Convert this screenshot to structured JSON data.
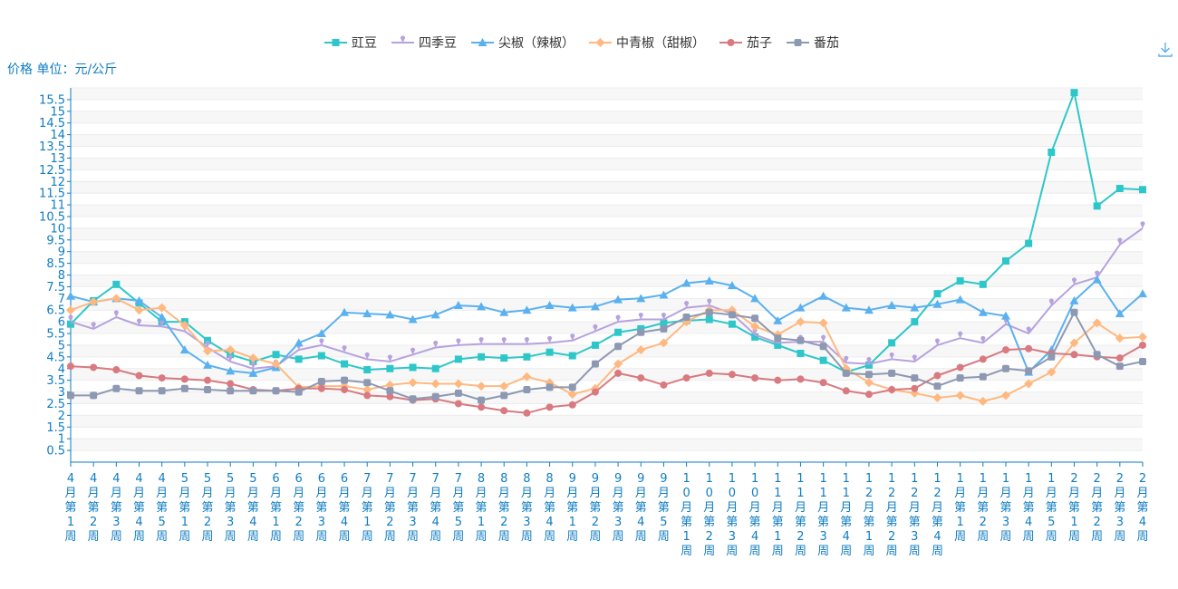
{
  "toolbar": {
    "download_icon": "download-icon"
  },
  "chart_data": {
    "type": "line",
    "ylabel": "价格 单位：元/公斤",
    "ylim": [
      0,
      16
    ],
    "yticks": [
      0.5,
      1,
      1.5,
      2,
      2.5,
      3,
      3.5,
      4,
      4.5,
      5,
      5.5,
      6,
      6.5,
      7,
      7.5,
      8,
      8.5,
      9,
      9.5,
      10,
      10.5,
      11,
      11.5,
      12,
      12.5,
      13,
      13.5,
      14,
      14.5,
      15,
      15.5
    ],
    "legend_position": "top-center",
    "grid": true,
    "categories": [
      "4月第1周",
      "4月第2周",
      "4月第3周",
      "4月第4周",
      "4月第5周",
      "5月第1周",
      "5月第2周",
      "5月第3周",
      "5月第4周",
      "6月第1周",
      "6月第2周",
      "6月第3周",
      "6月第4周",
      "7月第1周",
      "7月第2周",
      "7月第3周",
      "7月第4周",
      "7月第5周",
      "8月第1周",
      "8月第2周",
      "8月第3周",
      "8月第4周",
      "9月第1周",
      "9月第2周",
      "9月第3周",
      "9月第4周",
      "9月第5周",
      "10月第1周",
      "10月第2周",
      "10月第3周",
      "10月第4周",
      "11月第1周",
      "11月第2周",
      "11月第3周",
      "11月第4周",
      "12月第1周",
      "12月第2周",
      "12月第3周",
      "12月第4周",
      "1月第1周",
      "1月第2周",
      "1月第3周",
      "1月第4周",
      "1月第5周",
      "2月第1周",
      "2月第2周",
      "2月第3周",
      "2月第4周"
    ],
    "series": [
      {
        "name": "豇豆",
        "color": "#2ec7c9",
        "symbol": "rect",
        "values": [
          5.9,
          6.9,
          7.6,
          6.8,
          6.0,
          6.0,
          5.2,
          4.6,
          4.3,
          4.6,
          4.4,
          4.55,
          4.2,
          3.95,
          4.0,
          4.05,
          4.0,
          4.4,
          4.5,
          4.45,
          4.5,
          4.7,
          4.55,
          5.0,
          5.55,
          5.7,
          5.95,
          6.05,
          6.1,
          5.9,
          5.35,
          5.0,
          4.65,
          4.35,
          3.85,
          4.15,
          5.1,
          6.0,
          7.2,
          7.75,
          7.6,
          8.6,
          9.35,
          13.25,
          15.8,
          10.95,
          11.7,
          11.65
        ]
      },
      {
        "name": "四季豆",
        "color": "#b6a2de",
        "symbol": "pin",
        "values": [
          6.0,
          5.7,
          6.2,
          5.85,
          5.8,
          5.6,
          4.9,
          4.3,
          4.0,
          4.1,
          4.8,
          5.0,
          4.7,
          4.4,
          4.3,
          4.6,
          4.9,
          5.0,
          5.05,
          5.05,
          5.05,
          5.1,
          5.2,
          5.6,
          6.0,
          6.1,
          6.1,
          6.6,
          6.7,
          6.35,
          5.45,
          5.1,
          5.15,
          5.15,
          4.25,
          4.2,
          4.4,
          4.3,
          5.0,
          5.3,
          5.1,
          5.9,
          5.5,
          6.7,
          7.6,
          7.9,
          9.3,
          10.0
        ]
      },
      {
        "name": "尖椒（辣椒）",
        "color": "#5ab1ef",
        "symbol": "triangle",
        "values": [
          7.1,
          6.85,
          7.0,
          6.9,
          6.2,
          4.8,
          4.15,
          3.9,
          3.8,
          4.05,
          5.1,
          5.5,
          6.4,
          6.35,
          6.3,
          6.1,
          6.3,
          6.7,
          6.65,
          6.4,
          6.5,
          6.7,
          6.6,
          6.65,
          6.95,
          7.0,
          7.15,
          7.65,
          7.75,
          7.55,
          7.0,
          6.05,
          6.6,
          7.1,
          6.6,
          6.5,
          6.7,
          6.6,
          6.75,
          6.95,
          6.4,
          6.25,
          3.85,
          4.8,
          6.9,
          7.8,
          6.35,
          7.2
        ]
      },
      {
        "name": "中青椒（甜椒）",
        "color": "#ffb980",
        "symbol": "diamond",
        "values": [
          6.5,
          6.85,
          7.0,
          6.5,
          6.6,
          5.85,
          4.75,
          4.8,
          4.45,
          4.2,
          3.2,
          3.25,
          3.25,
          3.1,
          3.3,
          3.4,
          3.35,
          3.35,
          3.25,
          3.25,
          3.65,
          3.4,
          2.9,
          3.15,
          4.2,
          4.8,
          5.1,
          6.0,
          6.5,
          6.5,
          5.8,
          5.45,
          6.0,
          5.95,
          4.0,
          3.4,
          3.1,
          2.95,
          2.75,
          2.85,
          2.6,
          2.85,
          3.35,
          3.85,
          5.1,
          5.95,
          5.3,
          5.35
        ]
      },
      {
        "name": "茄子",
        "color": "#d87a80",
        "symbol": "circle",
        "values": [
          4.1,
          4.05,
          3.95,
          3.7,
          3.6,
          3.55,
          3.5,
          3.35,
          3.1,
          3.05,
          3.15,
          3.15,
          3.1,
          2.85,
          2.8,
          2.65,
          2.7,
          2.5,
          2.35,
          2.2,
          2.1,
          2.35,
          2.45,
          3.0,
          3.8,
          3.6,
          3.3,
          3.6,
          3.8,
          3.75,
          3.6,
          3.5,
          3.55,
          3.4,
          3.05,
          2.9,
          3.1,
          3.15,
          3.7,
          4.05,
          4.4,
          4.8,
          4.85,
          4.65,
          4.6,
          4.5,
          4.45,
          5.0
        ]
      },
      {
        "name": "番茄",
        "color": "#8d98b3",
        "symbol": "roundRect",
        "values": [
          2.85,
          2.85,
          3.15,
          3.05,
          3.05,
          3.15,
          3.1,
          3.05,
          3.05,
          3.05,
          3.0,
          3.45,
          3.5,
          3.4,
          3.05,
          2.7,
          2.8,
          2.95,
          2.65,
          2.85,
          3.1,
          3.2,
          3.2,
          4.2,
          4.95,
          5.55,
          5.7,
          6.2,
          6.4,
          6.3,
          6.15,
          5.3,
          5.2,
          4.95,
          3.8,
          3.75,
          3.8,
          3.6,
          3.25,
          3.6,
          3.65,
          4.0,
          3.9,
          4.5,
          6.4,
          4.6,
          4.1,
          4.3
        ]
      }
    ]
  }
}
